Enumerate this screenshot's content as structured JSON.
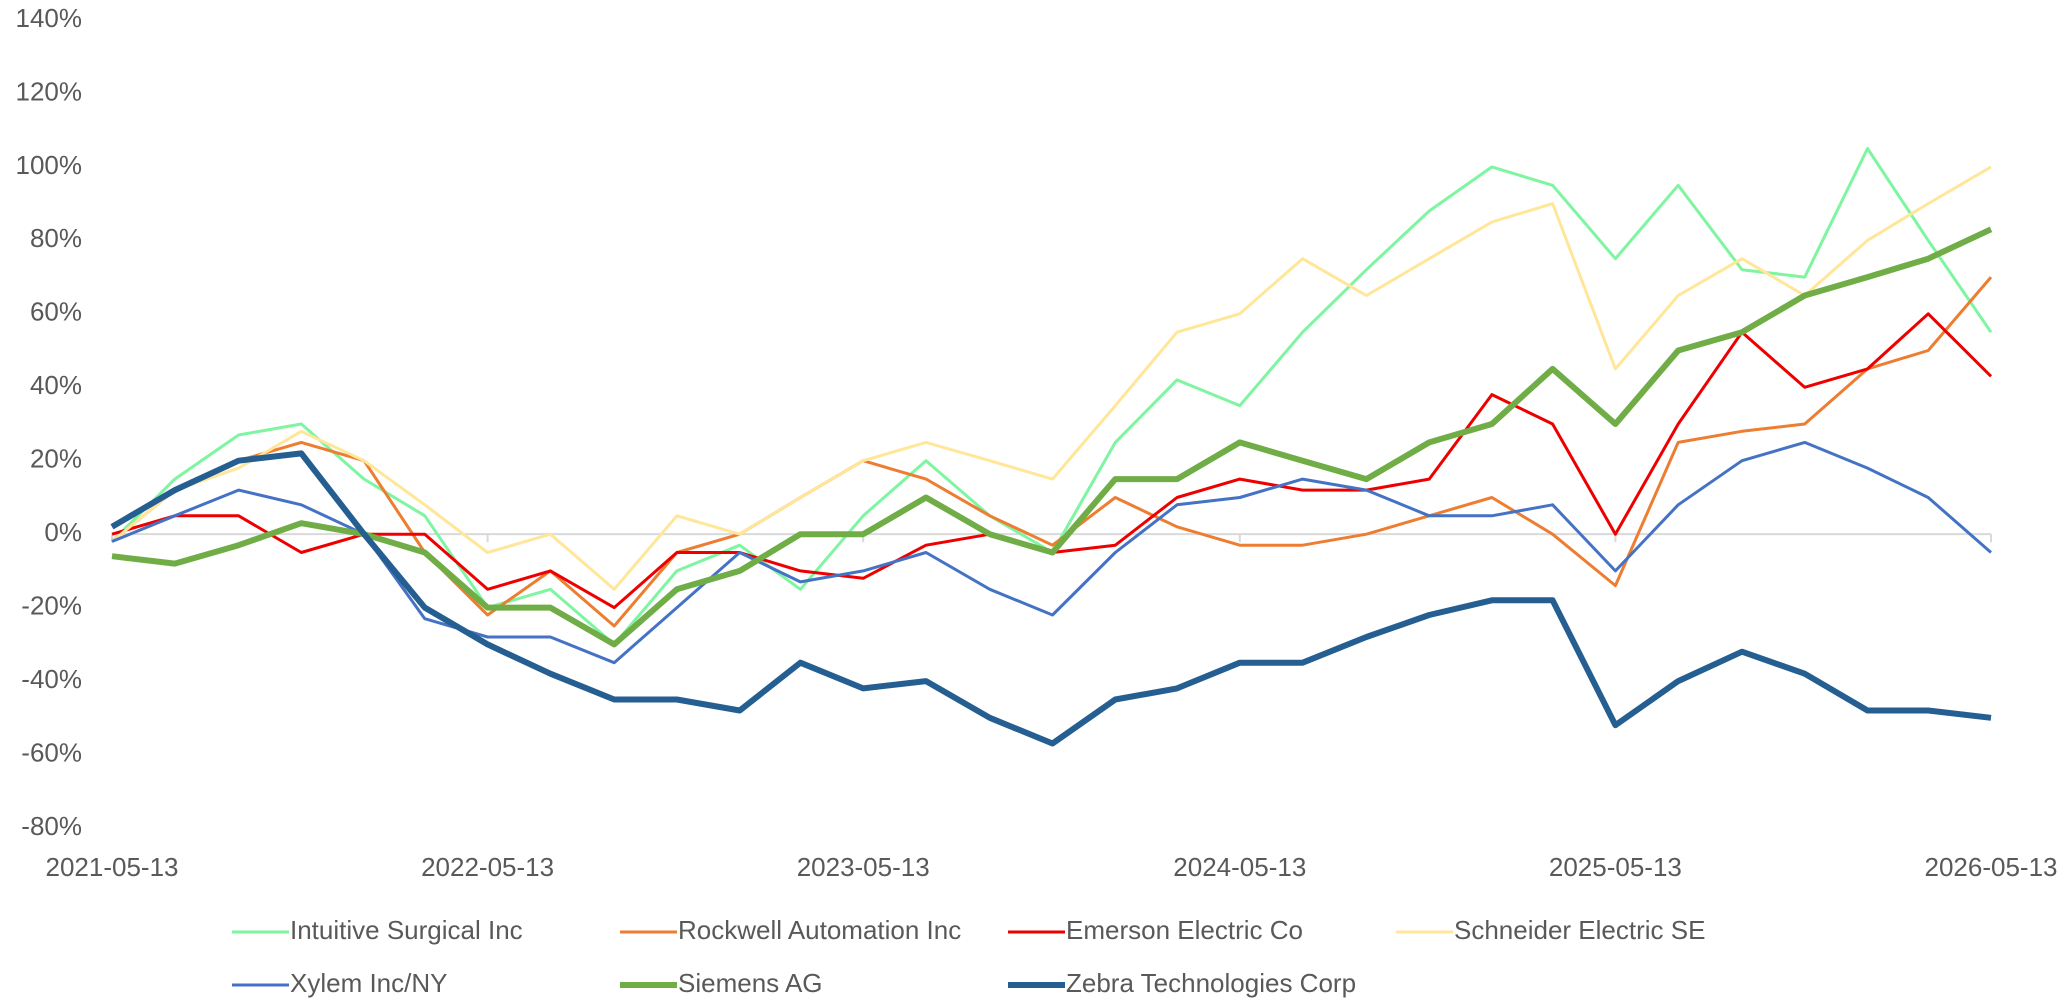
{
  "chart_data": {
    "type": "line",
    "x": [
      "2021-05-13",
      "2021-07-13",
      "2021-09-13",
      "2021-11-13",
      "2022-01-13",
      "2022-03-13",
      "2022-05-13",
      "2022-07-13",
      "2022-09-13",
      "2022-11-13",
      "2023-01-13",
      "2023-03-13",
      "2023-05-13",
      "2023-07-13",
      "2023-09-13",
      "2023-11-13",
      "2024-01-13",
      "2024-03-13",
      "2024-05-13",
      "2024-07-13",
      "2024-09-13",
      "2024-11-13",
      "2025-01-13",
      "2025-03-13",
      "2025-05-13",
      "2025-07-13",
      "2025-09-13",
      "2025-11-13",
      "2026-01-13",
      "2026-03-13",
      "2026-05-13"
    ],
    "xlim": [
      "2021-05-13",
      "2026-05-13"
    ],
    "xticks": [
      "2021-05-13",
      "2022-05-13",
      "2023-05-13",
      "2024-05-13",
      "2025-05-13",
      "2026-05-13"
    ],
    "ylim": [
      -80,
      140
    ],
    "yticks": [
      {
        "value": -80,
        "label": "-80%"
      },
      {
        "value": -60,
        "label": "-60%"
      },
      {
        "value": -40,
        "label": "-40%"
      },
      {
        "value": -20,
        "label": "-20%"
      },
      {
        "value": 0,
        "label": "0%"
      },
      {
        "value": 20,
        "label": "20%"
      },
      {
        "value": 40,
        "label": "40%"
      },
      {
        "value": 60,
        "label": "60%"
      },
      {
        "value": 80,
        "label": "80%"
      },
      {
        "value": 100,
        "label": "100%"
      },
      {
        "value": 120,
        "label": "120%"
      },
      {
        "value": 140,
        "label": "140%"
      }
    ],
    "series": [
      {
        "name": "Intuitive Surgical Inc",
        "color": "#7ef5a0",
        "line_width": 3,
        "values": [
          -2,
          15,
          27,
          30,
          15,
          5,
          -20,
          -15,
          -30,
          -10,
          -3,
          -15,
          5,
          20,
          5,
          -5,
          25,
          42,
          35,
          55,
          72,
          88,
          100,
          95,
          75,
          95,
          72,
          70,
          105,
          80,
          55
        ]
      },
      {
        "name": "Rockwell Automation Inc",
        "color": "#ed7d31",
        "line_width": 3,
        "values": [
          -2,
          12,
          20,
          25,
          20,
          -5,
          -22,
          -10,
          -25,
          -5,
          0,
          10,
          20,
          15,
          5,
          -3,
          10,
          2,
          -3,
          -3,
          0,
          5,
          10,
          0,
          -14,
          25,
          28,
          30,
          45,
          50,
          70
        ]
      },
      {
        "name": "Emerson Electric Co",
        "color": "#ee0000",
        "line_width": 3,
        "values": [
          0,
          5,
          5,
          -5,
          0,
          0,
          -15,
          -10,
          -20,
          -5,
          -5,
          -10,
          -12,
          -3,
          0,
          -5,
          -3,
          10,
          15,
          12,
          12,
          15,
          38,
          30,
          0,
          30,
          55,
          40,
          45,
          60,
          43
        ]
      },
      {
        "name": "Schneider Electric SE",
        "color": "#ffe699",
        "line_width": 3,
        "values": [
          -2,
          12,
          18,
          28,
          20,
          8,
          -5,
          0,
          -15,
          5,
          0,
          10,
          20,
          25,
          20,
          15,
          35,
          55,
          60,
          75,
          65,
          75,
          85,
          90,
          45,
          65,
          75,
          65,
          80,
          90,
          100
        ]
      },
      {
        "name": "Xylem Inc/NY",
        "color": "#4472c4",
        "line_width": 3,
        "values": [
          -2,
          5,
          12,
          8,
          0,
          -23,
          -28,
          -28,
          -35,
          -20,
          -5,
          -13,
          -10,
          -5,
          -15,
          -22,
          -5,
          8,
          10,
          15,
          12,
          5,
          5,
          8,
          -10,
          8,
          20,
          25,
          18,
          10,
          -5
        ]
      },
      {
        "name": "Siemens AG",
        "color": "#70ad47",
        "line_width": 6,
        "values": [
          -6,
          -8,
          -3,
          3,
          0,
          -5,
          -20,
          -20,
          -30,
          -15,
          -10,
          0,
          0,
          10,
          0,
          -5,
          15,
          15,
          25,
          20,
          15,
          25,
          30,
          45,
          30,
          50,
          55,
          65,
          70,
          75,
          83
        ]
      },
      {
        "name": "Zebra Technologies Corp",
        "color": "#255e91",
        "line_width": 6,
        "values": [
          2,
          12,
          20,
          22,
          0,
          -20,
          -30,
          -38,
          -45,
          -45,
          -48,
          -35,
          -42,
          -40,
          -50,
          -57,
          -45,
          -42,
          -35,
          -35,
          -28,
          -22,
          -18,
          -18,
          -52,
          -40,
          -32,
          -38,
          -48,
          -48,
          -50
        ]
      }
    ]
  }
}
